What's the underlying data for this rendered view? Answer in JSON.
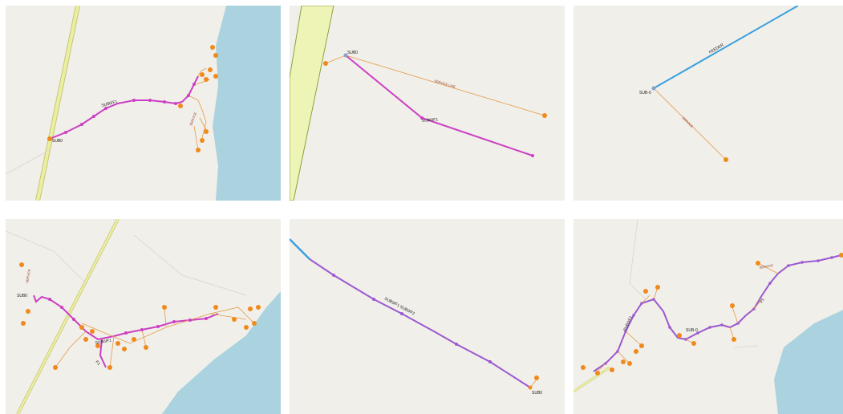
{
  "colors": {
    "background": "#f1efe9",
    "water": "#aad3df",
    "road_yellow": "#e9f0a0",
    "road_casing": "#c9c47a",
    "feeder_magenta": "#cc3fc4",
    "feeder_purple": "#9b59d0",
    "feeder_blue": "#3aa0e0",
    "service_orange": "#e59a4a",
    "meter_orange": "#f08a1c",
    "label_red": "#8b3a2a"
  },
  "tiles": [
    {
      "id": "tile-1",
      "node_labels": [
        "SUB0"
      ],
      "line_labels": [
        "SUB0/F1"
      ],
      "service_labels": [
        "SERVICE"
      ]
    },
    {
      "id": "tile-2",
      "node_labels": [
        "SUB0"
      ],
      "line_labels": [
        "SUB0/F1"
      ],
      "service_labels": [
        "SERVICE LINE"
      ]
    },
    {
      "id": "tile-3",
      "node_labels": [
        "SUB-0"
      ],
      "line_labels": [
        "FEEDER"
      ],
      "service_labels": [
        "SERVICE"
      ]
    },
    {
      "id": "tile-4",
      "node_labels": [
        "SUB0"
      ],
      "line_labels": [
        "SUB0/F1",
        "F1"
      ],
      "service_labels": [
        "SERVICE"
      ]
    },
    {
      "id": "tile-5",
      "node_labels": [
        "SUB0"
      ],
      "line_labels": [
        "SUB0/F1 SUB0/F2"
      ],
      "service_labels": []
    },
    {
      "id": "tile-6",
      "node_labels": [
        "SUB-0"
      ],
      "line_labels": [
        "SUB0/F1",
        "F1"
      ],
      "service_labels": [
        "SERVICE"
      ]
    }
  ]
}
